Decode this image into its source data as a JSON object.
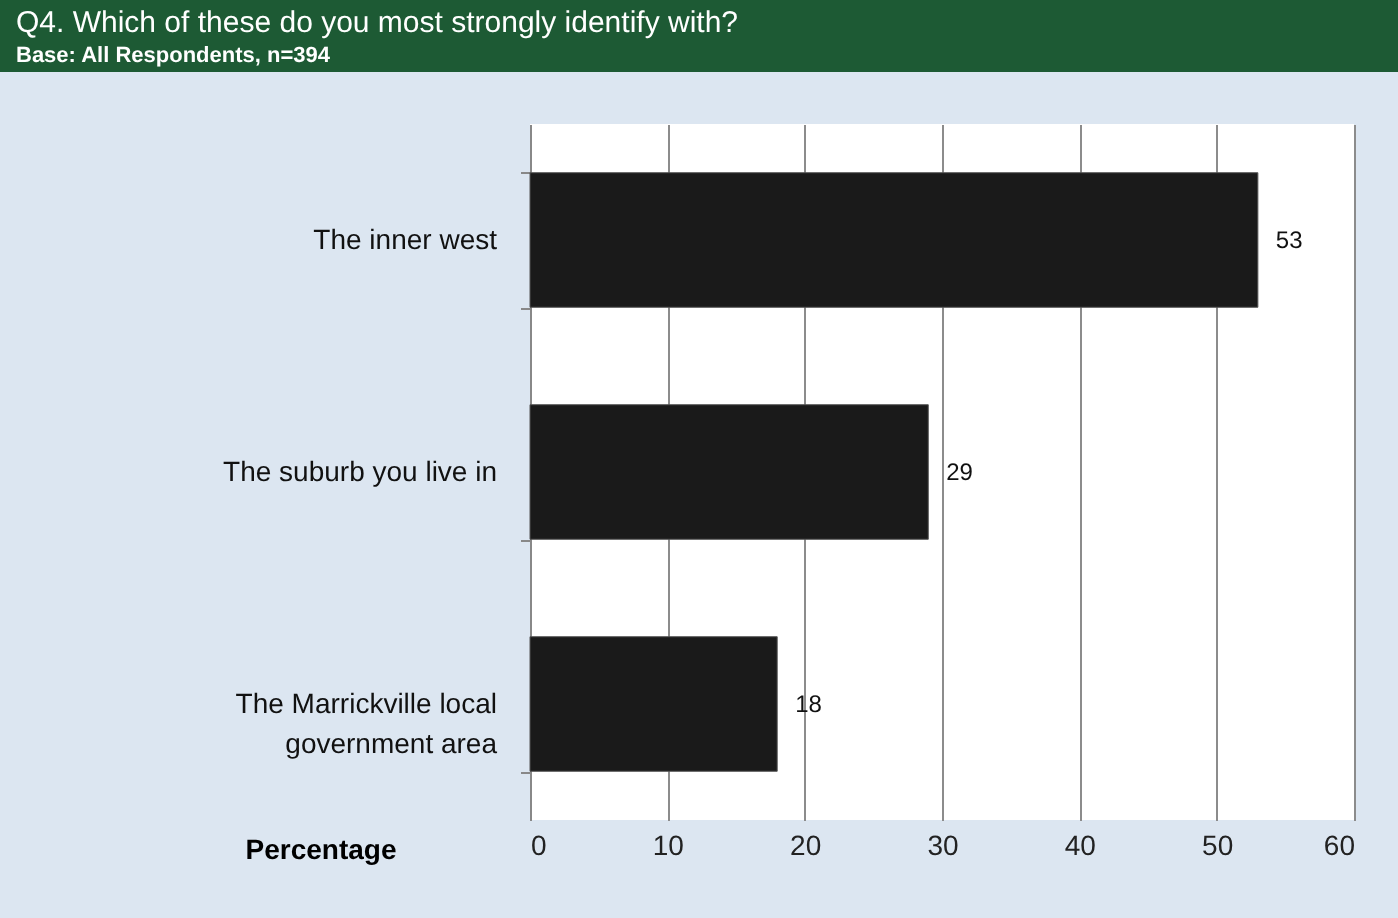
{
  "chart_data": {
    "type": "bar",
    "orientation": "horizontal",
    "title": "Q4. Which of these do you most strongly identify with?",
    "subtitle": "Base: All Respondents, n=394",
    "categories": [
      "The inner west",
      "The suburb you live in",
      "The Marrickville local government area"
    ],
    "values": [
      53,
      29,
      18
    ],
    "color": "#1a1a1a",
    "xlabel": "Percentage",
    "xlim": [
      0,
      60
    ],
    "xticks": [
      0,
      10,
      20,
      30,
      40,
      50,
      60
    ],
    "grid": "x",
    "data_labels": true
  }
}
